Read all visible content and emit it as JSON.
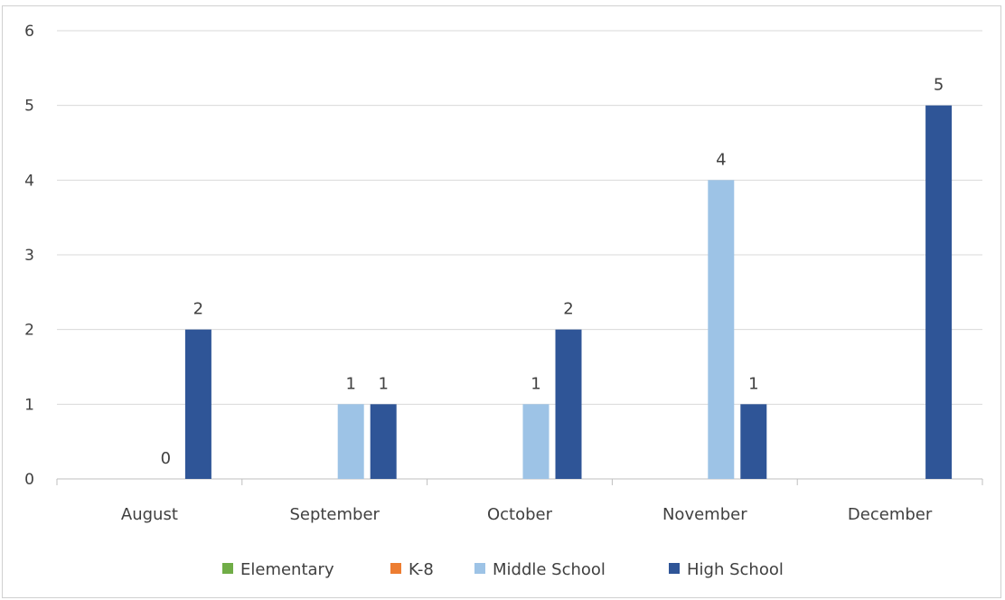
{
  "chart_data": {
    "type": "bar",
    "title": "",
    "xlabel": "",
    "ylabel": "",
    "categories": [
      "August",
      "September",
      "October",
      "November",
      "December"
    ],
    "series": [
      {
        "name": "Elementary",
        "color": "#70ad47",
        "values": [
          null,
          null,
          null,
          null,
          null
        ]
      },
      {
        "name": "K-8",
        "color": "#ed7d31",
        "values": [
          null,
          null,
          null,
          null,
          null
        ]
      },
      {
        "name": "Middle School",
        "color": "#9dc3e6",
        "values": [
          0,
          1,
          1,
          4,
          null
        ]
      },
      {
        "name": "High School",
        "color": "#2f5597",
        "values": [
          2,
          1,
          2,
          1,
          5
        ]
      }
    ],
    "ylim": [
      0,
      6
    ],
    "yticks": [
      0,
      1,
      2,
      3,
      4,
      5,
      6
    ],
    "grid": true,
    "legend": "bottom"
  }
}
